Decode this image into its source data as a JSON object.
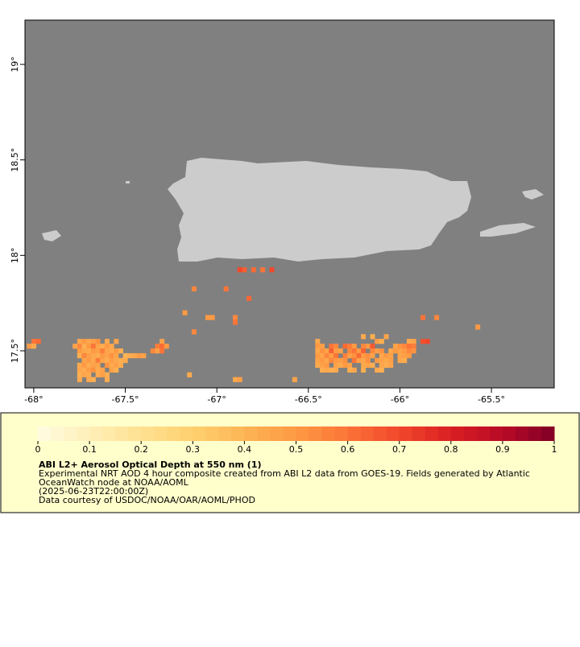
{
  "map": {
    "xlim": [
      -68.048,
      -65.157
    ],
    "ylim": [
      17.306,
      19.232
    ],
    "xticks": [
      {
        "value": -68,
        "label": "-68°"
      },
      {
        "value": -67.5,
        "label": "-67.5°"
      },
      {
        "value": -67,
        "label": "-67°"
      },
      {
        "value": -66.5,
        "label": "-66.5°"
      },
      {
        "value": -66,
        "label": "-66°"
      },
      {
        "value": -65.5,
        "label": "-65.5°"
      }
    ],
    "yticks": [
      {
        "value": 19,
        "label": "19°"
      },
      {
        "value": 18.5,
        "label": "18.5°"
      },
      {
        "value": 18,
        "label": "18°"
      },
      {
        "value": 17.5,
        "label": "17.5°"
      }
    ],
    "cell_size": 0.025,
    "cells": [
      [
        -67.75,
        17.55,
        0.45
      ],
      [
        -67.725,
        17.55,
        0.5
      ],
      [
        -67.7,
        17.55,
        0.45
      ],
      [
        -67.675,
        17.55,
        0.48
      ],
      [
        -67.65,
        17.55,
        0.52
      ],
      [
        -67.6,
        17.55,
        0.44
      ],
      [
        -67.55,
        17.55,
        0.46
      ],
      [
        -67.3,
        17.55,
        0.47
      ],
      [
        -67.775,
        17.525,
        0.46
      ],
      [
        -67.75,
        17.525,
        0.55
      ],
      [
        -67.725,
        17.525,
        0.42
      ],
      [
        -67.7,
        17.525,
        0.5
      ],
      [
        -67.675,
        17.525,
        0.6
      ],
      [
        -67.65,
        17.525,
        0.47
      ],
      [
        -67.625,
        17.525,
        0.43
      ],
      [
        -67.6,
        17.525,
        0.5
      ],
      [
        -67.575,
        17.525,
        0.45
      ],
      [
        -67.325,
        17.525,
        0.58
      ],
      [
        -67.3,
        17.525,
        0.62
      ],
      [
        -67.275,
        17.525,
        0.5
      ],
      [
        -67.75,
        17.5,
        0.5
      ],
      [
        -67.725,
        17.5,
        0.45
      ],
      [
        -67.7,
        17.5,
        0.44
      ],
      [
        -67.675,
        17.5,
        0.5
      ],
      [
        -67.65,
        17.5,
        0.48
      ],
      [
        -67.625,
        17.5,
        0.57
      ],
      [
        -67.6,
        17.5,
        0.46
      ],
      [
        -67.575,
        17.5,
        0.44
      ],
      [
        -67.55,
        17.5,
        0.5
      ],
      [
        -67.525,
        17.5,
        0.42
      ],
      [
        -67.35,
        17.5,
        0.55
      ],
      [
        -67.325,
        17.5,
        0.48
      ],
      [
        -67.3,
        17.5,
        0.6
      ],
      [
        -67.75,
        17.475,
        0.42
      ],
      [
        -67.725,
        17.475,
        0.55
      ],
      [
        -67.7,
        17.475,
        0.48
      ],
      [
        -67.675,
        17.475,
        0.45
      ],
      [
        -67.65,
        17.475,
        0.43
      ],
      [
        -67.625,
        17.475,
        0.5
      ],
      [
        -67.6,
        17.475,
        0.46
      ],
      [
        -67.575,
        17.475,
        0.52
      ],
      [
        -67.55,
        17.475,
        0.45
      ],
      [
        -67.5,
        17.475,
        0.4
      ],
      [
        -67.475,
        17.475,
        0.43
      ],
      [
        -67.45,
        17.475,
        0.45
      ],
      [
        -67.425,
        17.475,
        0.5
      ],
      [
        -67.4,
        17.475,
        0.47
      ],
      [
        -67.725,
        17.45,
        0.46
      ],
      [
        -67.7,
        17.45,
        0.5
      ],
      [
        -67.675,
        17.45,
        0.44
      ],
      [
        -67.65,
        17.45,
        0.58
      ],
      [
        -67.625,
        17.45,
        0.47
      ],
      [
        -67.6,
        17.45,
        0.43
      ],
      [
        -67.575,
        17.45,
        0.49
      ],
      [
        -67.55,
        17.45,
        0.45
      ],
      [
        -67.525,
        17.45,
        0.42
      ],
      [
        -67.5,
        17.45,
        0.44
      ],
      [
        -67.75,
        17.425,
        0.44
      ],
      [
        -67.725,
        17.425,
        0.5
      ],
      [
        -67.7,
        17.425,
        0.43
      ],
      [
        -67.675,
        17.425,
        0.47
      ],
      [
        -67.65,
        17.425,
        0.45
      ],
      [
        -67.6,
        17.425,
        0.52
      ],
      [
        -67.575,
        17.425,
        0.44
      ],
      [
        -67.55,
        17.425,
        0.48
      ],
      [
        -67.525,
        17.425,
        0.43
      ],
      [
        -67.75,
        17.4,
        0.45
      ],
      [
        -67.725,
        17.4,
        0.43
      ],
      [
        -67.7,
        17.4,
        0.49
      ],
      [
        -67.675,
        17.4,
        0.52
      ],
      [
        -67.65,
        17.4,
        0.44
      ],
      [
        -67.625,
        17.4,
        0.47
      ],
      [
        -67.575,
        17.4,
        0.46
      ],
      [
        -67.55,
        17.4,
        0.42
      ],
      [
        -67.75,
        17.375,
        0.42
      ],
      [
        -67.725,
        17.375,
        0.46
      ],
      [
        -67.7,
        17.375,
        0.43
      ],
      [
        -67.65,
        17.375,
        0.44
      ],
      [
        -67.625,
        17.375,
        0.48
      ],
      [
        -67.6,
        17.375,
        0.42
      ],
      [
        -67.75,
        17.35,
        0.44
      ],
      [
        -67.7,
        17.35,
        0.45
      ],
      [
        -67.675,
        17.35,
        0.42
      ],
      [
        -67.6,
        17.35,
        0.43
      ],
      [
        -68.0,
        17.55,
        0.6
      ],
      [
        -67.975,
        17.55,
        0.62
      ],
      [
        -68.025,
        17.525,
        0.5
      ],
      [
        -68.0,
        17.525,
        0.44
      ],
      [
        -66.45,
        17.55,
        0.45
      ],
      [
        -66.125,
        17.55,
        0.48
      ],
      [
        -66.1,
        17.55,
        0.42
      ],
      [
        -65.95,
        17.55,
        0.44
      ],
      [
        -65.925,
        17.55,
        0.46
      ],
      [
        -65.875,
        17.55,
        0.68
      ],
      [
        -65.85,
        17.55,
        0.7
      ],
      [
        -66.45,
        17.525,
        0.5
      ],
      [
        -66.425,
        17.525,
        0.48
      ],
      [
        -66.375,
        17.525,
        0.6
      ],
      [
        -66.35,
        17.525,
        0.55
      ],
      [
        -66.3,
        17.525,
        0.62
      ],
      [
        -66.275,
        17.525,
        0.58
      ],
      [
        -66.25,
        17.525,
        0.5
      ],
      [
        -66.2,
        17.525,
        0.55
      ],
      [
        -66.175,
        17.525,
        0.5
      ],
      [
        -66.15,
        17.525,
        0.66
      ],
      [
        -66.025,
        17.525,
        0.46
      ],
      [
        -66.0,
        17.525,
        0.52
      ],
      [
        -65.975,
        17.525,
        0.55
      ],
      [
        -65.95,
        17.525,
        0.6
      ],
      [
        -65.925,
        17.525,
        0.57
      ],
      [
        -66.45,
        17.5,
        0.45
      ],
      [
        -66.425,
        17.5,
        0.52
      ],
      [
        -66.4,
        17.5,
        0.47
      ],
      [
        -66.375,
        17.5,
        0.65
      ],
      [
        -66.35,
        17.5,
        0.5
      ],
      [
        -66.325,
        17.5,
        0.47
      ],
      [
        -66.275,
        17.5,
        0.55
      ],
      [
        -66.25,
        17.5,
        0.6
      ],
      [
        -66.225,
        17.5,
        0.5
      ],
      [
        -66.2,
        17.5,
        0.64
      ],
      [
        -66.15,
        17.5,
        0.55
      ],
      [
        -66.125,
        17.5,
        0.48
      ],
      [
        -66.1,
        17.5,
        0.52
      ],
      [
        -66.05,
        17.5,
        0.45
      ],
      [
        -66.025,
        17.5,
        0.5
      ],
      [
        -66.0,
        17.5,
        0.47
      ],
      [
        -65.975,
        17.5,
        0.5
      ],
      [
        -65.95,
        17.5,
        0.55
      ],
      [
        -65.925,
        17.5,
        0.52
      ],
      [
        -66.45,
        17.475,
        0.5
      ],
      [
        -66.425,
        17.475,
        0.46
      ],
      [
        -66.4,
        17.475,
        0.55
      ],
      [
        -66.375,
        17.475,
        0.48
      ],
      [
        -66.35,
        17.475,
        0.6
      ],
      [
        -66.3,
        17.475,
        0.57
      ],
      [
        -66.275,
        17.475,
        0.48
      ],
      [
        -66.25,
        17.475,
        0.52
      ],
      [
        -66.225,
        17.475,
        0.62
      ],
      [
        -66.2,
        17.475,
        0.5
      ],
      [
        -66.175,
        17.475,
        0.53
      ],
      [
        -66.15,
        17.475,
        0.47
      ],
      [
        -66.1,
        17.475,
        0.45
      ],
      [
        -66.075,
        17.475,
        0.5
      ],
      [
        -66.05,
        17.475,
        0.47
      ],
      [
        -66.0,
        17.475,
        0.46
      ],
      [
        -65.975,
        17.475,
        0.48
      ],
      [
        -65.95,
        17.475,
        0.5
      ],
      [
        -66.45,
        17.45,
        0.46
      ],
      [
        -66.425,
        17.45,
        0.5
      ],
      [
        -66.4,
        17.45,
        0.45
      ],
      [
        -66.375,
        17.45,
        0.55
      ],
      [
        -66.35,
        17.45,
        0.5
      ],
      [
        -66.325,
        17.45,
        0.48
      ],
      [
        -66.3,
        17.45,
        0.52
      ],
      [
        -66.25,
        17.45,
        0.6
      ],
      [
        -66.225,
        17.45,
        0.48
      ],
      [
        -66.2,
        17.45,
        0.45
      ],
      [
        -66.175,
        17.45,
        0.52
      ],
      [
        -66.125,
        17.45,
        0.5
      ],
      [
        -66.1,
        17.45,
        0.47
      ],
      [
        -66.075,
        17.45,
        0.44
      ],
      [
        -66.05,
        17.45,
        0.48
      ],
      [
        -66.0,
        17.45,
        0.45
      ],
      [
        -65.975,
        17.45,
        0.43
      ],
      [
        -66.45,
        17.425,
        0.44
      ],
      [
        -66.425,
        17.425,
        0.47
      ],
      [
        -66.4,
        17.425,
        0.5
      ],
      [
        -66.35,
        17.425,
        0.46
      ],
      [
        -66.325,
        17.425,
        0.44
      ],
      [
        -66.3,
        17.425,
        0.5
      ],
      [
        -66.275,
        17.425,
        0.47
      ],
      [
        -66.2,
        17.425,
        0.44
      ],
      [
        -66.175,
        17.425,
        0.46
      ],
      [
        -66.15,
        17.425,
        0.42
      ],
      [
        -66.1,
        17.425,
        0.45
      ],
      [
        -66.075,
        17.425,
        0.43
      ],
      [
        -66.05,
        17.425,
        0.46
      ],
      [
        -66.425,
        17.4,
        0.43
      ],
      [
        -66.4,
        17.4,
        0.45
      ],
      [
        -66.375,
        17.4,
        0.42
      ],
      [
        -66.35,
        17.4,
        0.44
      ],
      [
        -66.275,
        17.4,
        0.43
      ],
      [
        -66.25,
        17.4,
        0.45
      ],
      [
        -66.2,
        17.4,
        0.42
      ],
      [
        -66.125,
        17.4,
        0.44
      ],
      [
        -66.1,
        17.4,
        0.42
      ],
      [
        -66.075,
        17.575,
        0.46
      ],
      [
        -66.2,
        17.575,
        0.44
      ],
      [
        -66.15,
        17.575,
        0.42
      ],
      [
        -66.875,
        17.925,
        0.7
      ],
      [
        -66.85,
        17.925,
        0.65
      ],
      [
        -66.8,
        17.925,
        0.62
      ],
      [
        -66.75,
        17.925,
        0.6
      ],
      [
        -66.7,
        17.925,
        0.7
      ],
      [
        -67.125,
        17.825,
        0.55
      ],
      [
        -66.95,
        17.825,
        0.6
      ],
      [
        -66.825,
        17.775,
        0.63
      ],
      [
        -67.025,
        17.675,
        0.5
      ],
      [
        -67.05,
        17.675,
        0.5
      ],
      [
        -66.9,
        17.675,
        0.55
      ],
      [
        -66.9,
        17.65,
        0.6
      ],
      [
        -67.175,
        17.7,
        0.5
      ],
      [
        -67.125,
        17.6,
        0.55
      ],
      [
        -65.875,
        17.675,
        0.6
      ],
      [
        -65.8,
        17.675,
        0.55
      ],
      [
        -65.575,
        17.625,
        0.5
      ],
      [
        -66.9,
        17.35,
        0.45
      ],
      [
        -66.875,
        17.35,
        0.48
      ],
      [
        -67.15,
        17.375,
        0.44
      ],
      [
        -66.575,
        17.35,
        0.46
      ]
    ]
  },
  "colorbar": {
    "range": [
      0,
      1
    ],
    "ticks": [
      0,
      0.1,
      0.2,
      0.3,
      0.4,
      0.5,
      0.6,
      0.7,
      0.8,
      0.9,
      1
    ],
    "colors": [
      "#fffbe2",
      "#ffefb8",
      "#fee191",
      "#fed06f",
      "#fdb455",
      "#fd9a43",
      "#fb7438",
      "#f1472b",
      "#da1f23",
      "#b80a26",
      "#800026"
    ]
  },
  "legend": {
    "title": "ABI L2+ Aerosol Optical Depth at 550 nm (1)",
    "lines": [
      "Experimental NRT AOD 4 hour composite created from ABI L2 data from GOES-19. Fields generated by Atlantic",
      "OceanWatch node at NOAA/AOML",
      "(2025-06-23T22:00:00Z)",
      "Data courtesy of USDOC/NOAA/OAR/AOML/PHOD"
    ]
  }
}
